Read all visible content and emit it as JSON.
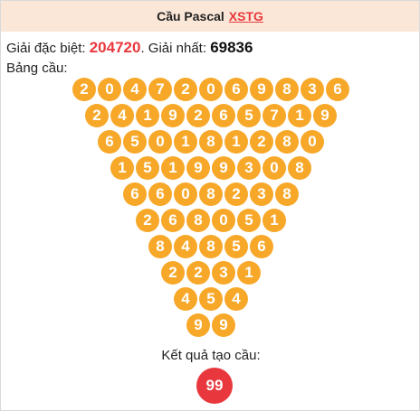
{
  "header": {
    "title": "Cầu Pascal",
    "link_text": "XSTG"
  },
  "info": {
    "special_label": "Giải đặc biệt:",
    "special_value": "204720",
    "separator": ".",
    "first_label": "Giải nhất:",
    "first_value": "69836"
  },
  "board_label": "Bảng cầu:",
  "pyramid": [
    [
      "2",
      "0",
      "4",
      "7",
      "2",
      "0",
      "6",
      "9",
      "8",
      "3",
      "6"
    ],
    [
      "2",
      "4",
      "1",
      "9",
      "2",
      "6",
      "5",
      "7",
      "1",
      "9"
    ],
    [
      "6",
      "5",
      "0",
      "1",
      "8",
      "1",
      "2",
      "8",
      "0"
    ],
    [
      "1",
      "5",
      "1",
      "9",
      "9",
      "3",
      "0",
      "8"
    ],
    [
      "6",
      "6",
      "0",
      "8",
      "2",
      "3",
      "8"
    ],
    [
      "2",
      "6",
      "8",
      "0",
      "5",
      "1"
    ],
    [
      "8",
      "4",
      "8",
      "5",
      "6"
    ],
    [
      "2",
      "2",
      "3",
      "1"
    ],
    [
      "4",
      "5",
      "4"
    ],
    [
      "9",
      "9"
    ]
  ],
  "result": {
    "label": "Kết quả tạo cầu:",
    "value": "99"
  },
  "colors": {
    "ball": "#f7a829",
    "result_ball": "#e8383d",
    "header_bg": "#fbe7d7",
    "accent_red": "#e8383d"
  }
}
